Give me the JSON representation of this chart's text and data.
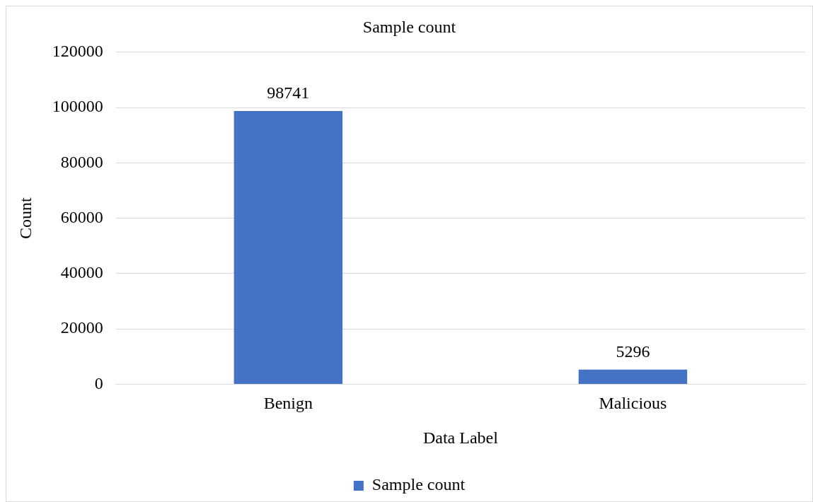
{
  "chart_data": {
    "type": "bar",
    "title": "Sample count",
    "xlabel": "Data Label",
    "ylabel": "Count",
    "categories": [
      "Benign",
      "Malicious"
    ],
    "series": [
      {
        "name": "Sample count",
        "color": "#4472c4",
        "values": [
          98741,
          5296
        ]
      }
    ],
    "ylim": [
      0,
      120000
    ],
    "yticks": [
      0,
      20000,
      40000,
      60000,
      80000,
      100000,
      120000
    ],
    "grid": "y",
    "legend": "bottom",
    "data_labels": true
  }
}
